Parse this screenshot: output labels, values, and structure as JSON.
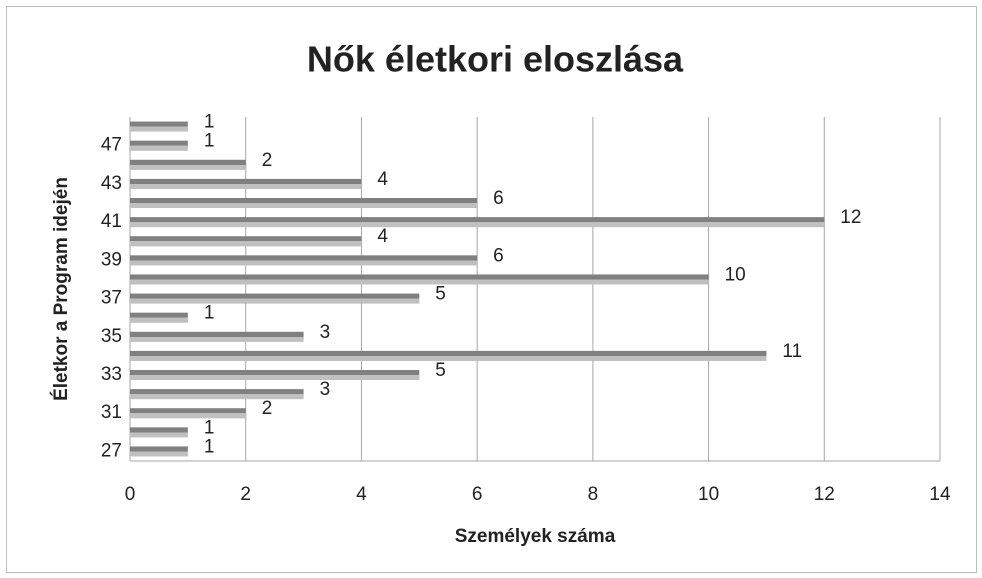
{
  "chart_data": {
    "type": "barh",
    "title": "Nők életkori eloszlása",
    "xlabel": "Személyek száma",
    "ylabel": "Életkor a Program idején",
    "categories": [
      "27",
      null,
      "31",
      null,
      "33",
      null,
      "35",
      null,
      "37",
      null,
      "39",
      null,
      "41",
      null,
      "43",
      null,
      "47",
      null
    ],
    "values": [
      1,
      1,
      2,
      3,
      5,
      11,
      3,
      1,
      5,
      10,
      6,
      4,
      12,
      6,
      4,
      2,
      1,
      1
    ],
    "color": "#808080",
    "xlim": [
      0,
      14
    ],
    "xticks": [
      0,
      2,
      4,
      6,
      8,
      10,
      12,
      14
    ],
    "grid": true
  }
}
